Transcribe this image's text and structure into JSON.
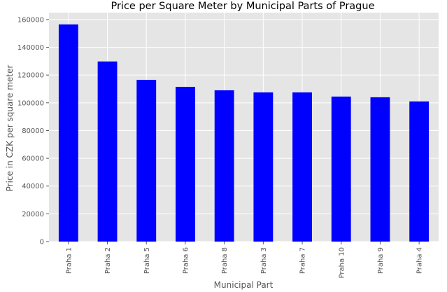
{
  "chart_data": {
    "type": "bar",
    "title": "Price per Square Meter by Municipal Parts of Prague",
    "xlabel": "Municipal Part",
    "ylabel": "Price in CZK per square meter",
    "categories": [
      "Praha 1",
      "Praha 2",
      "Praha 5",
      "Praha 6",
      "Praha 8",
      "Praha 3",
      "Praha 7",
      "Praha 10",
      "Praha 9",
      "Praha 4"
    ],
    "values": [
      156500,
      129800,
      116500,
      111500,
      109000,
      107500,
      107500,
      104500,
      104000,
      101000
    ],
    "ylim": [
      0,
      165000
    ],
    "yticks": [
      0,
      20000,
      40000,
      60000,
      80000,
      100000,
      120000,
      140000,
      160000
    ],
    "ytick_labels": [
      "0",
      "20000",
      "40000",
      "60000",
      "80000",
      "100000",
      "120000",
      "140000",
      "160000"
    ],
    "grid": true,
    "style": "ggplot",
    "colors": {
      "bar": "#0000ff",
      "plot_background": "#e5e5e5",
      "grid": "#ffffff"
    }
  }
}
